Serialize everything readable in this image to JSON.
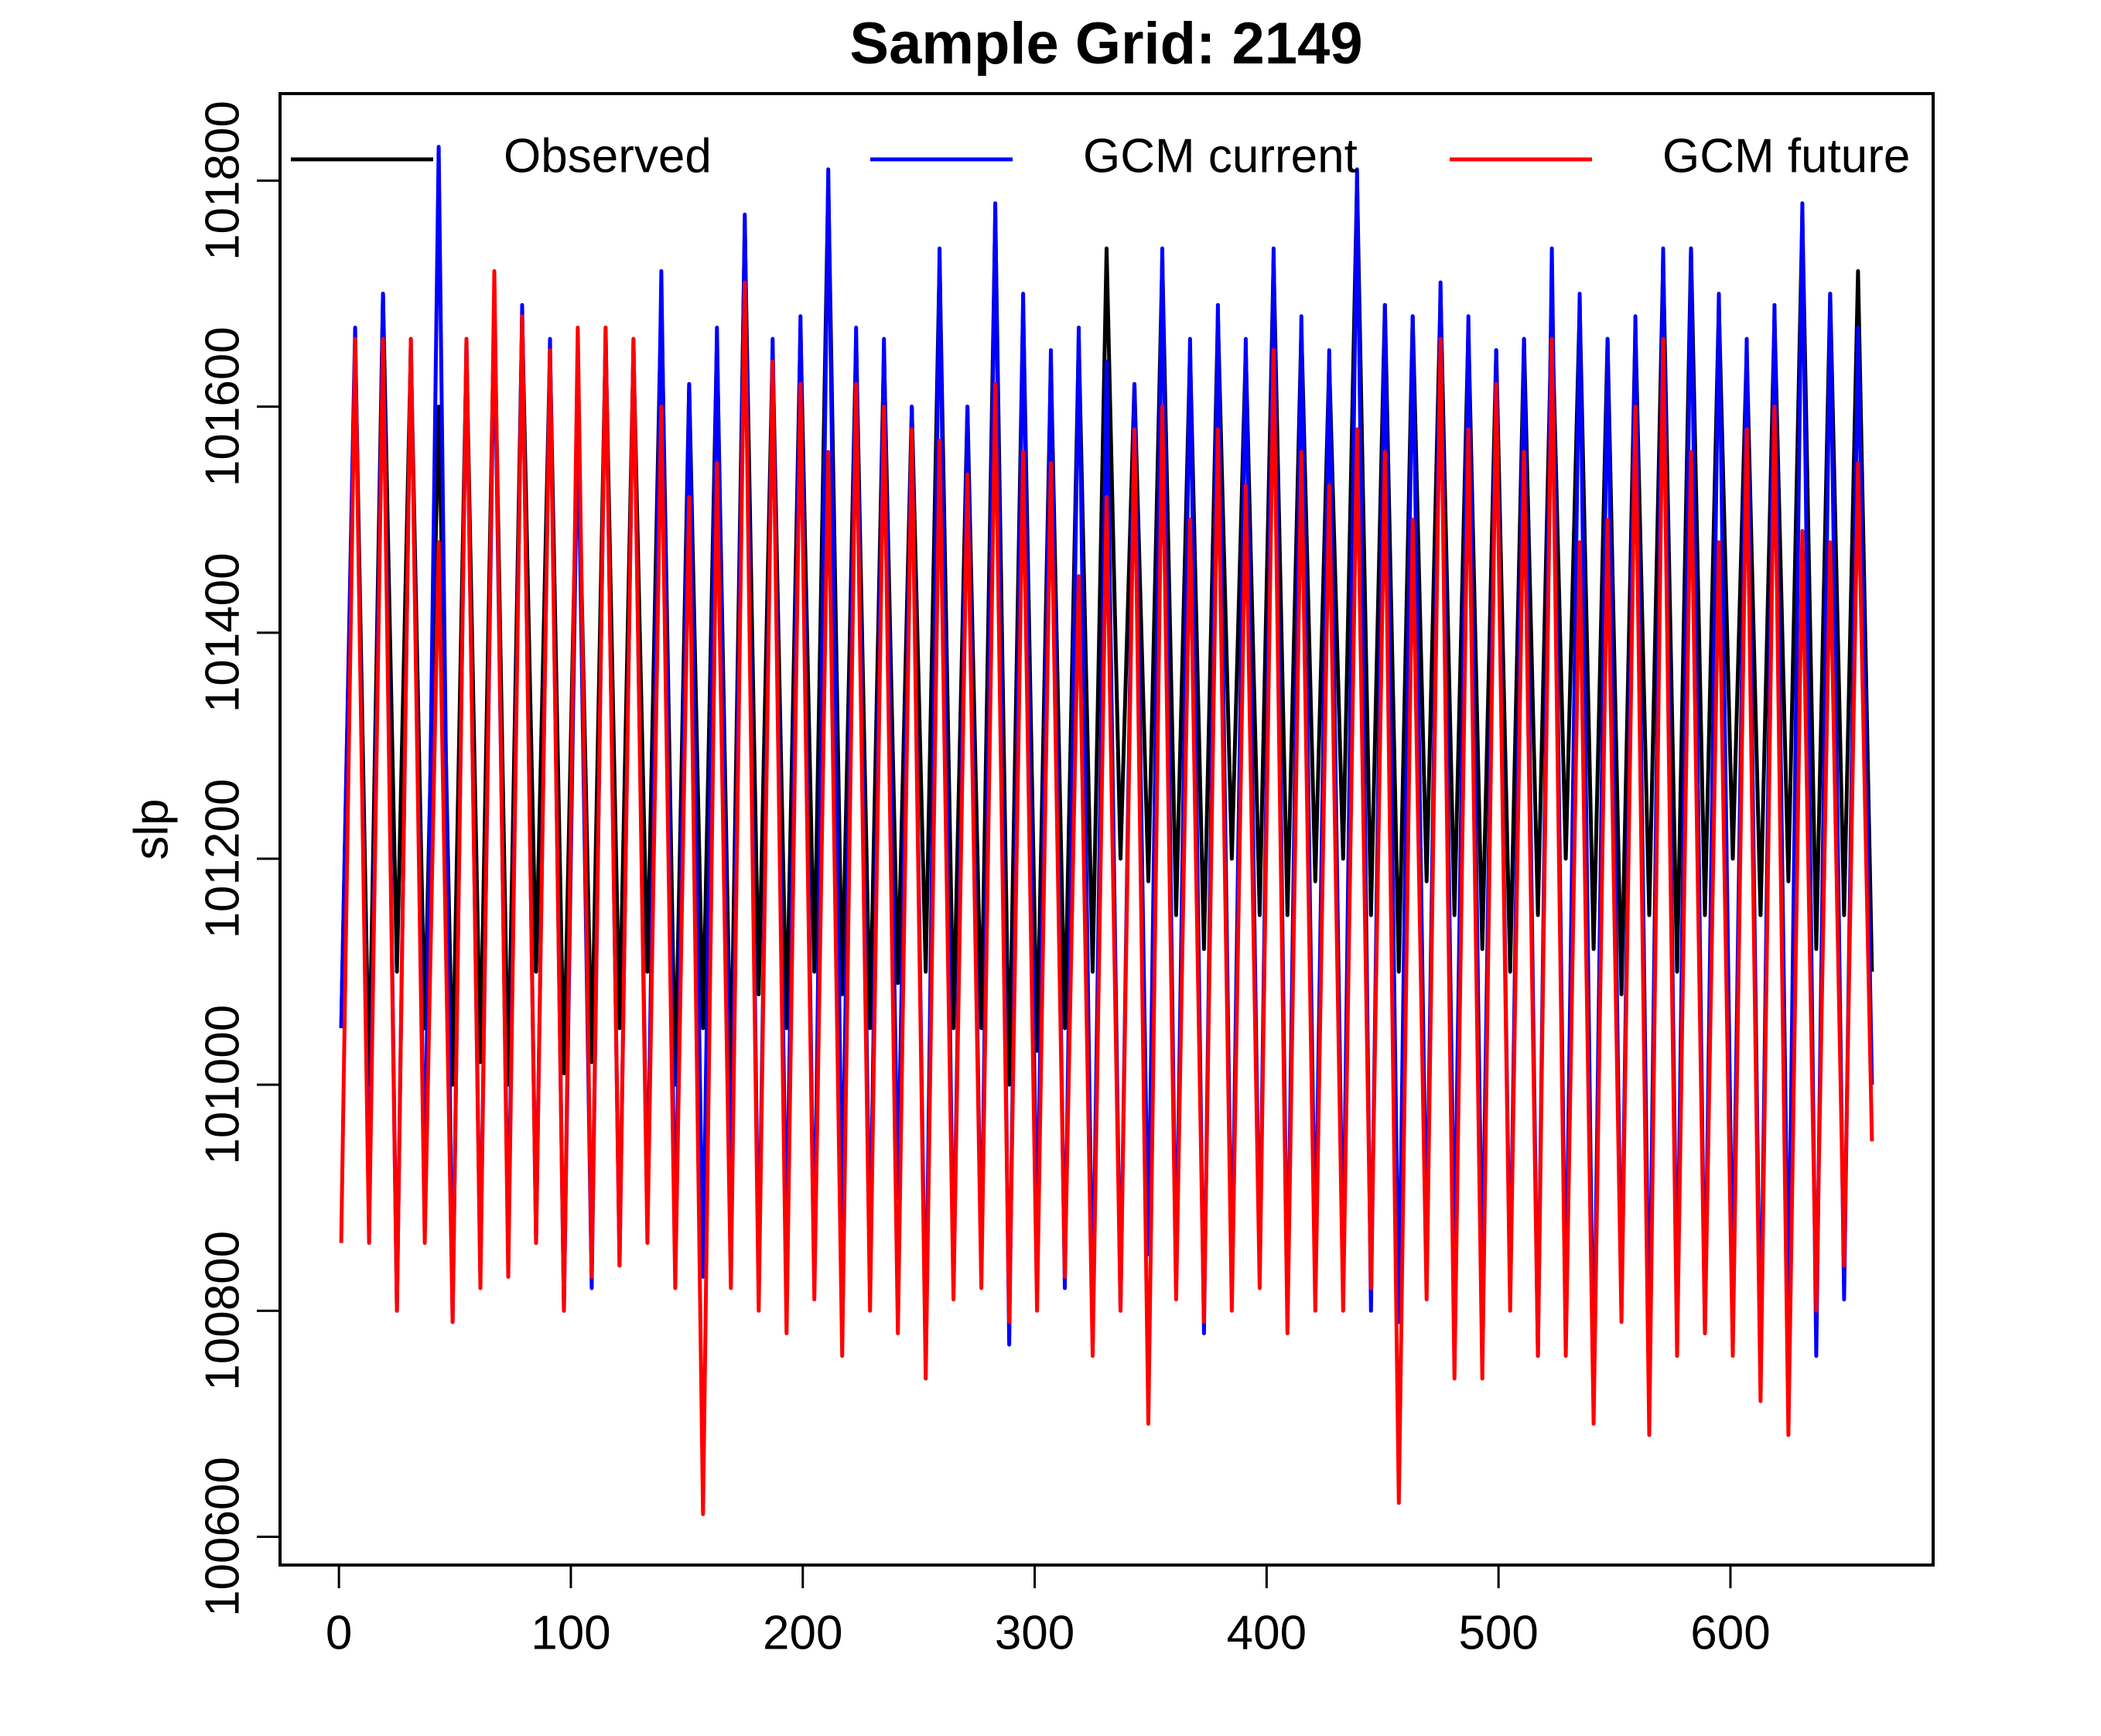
{
  "chart_data": {
    "type": "line",
    "title": "Sample Grid: 2149",
    "y_label": "slp",
    "x": [
      1,
      7,
      13,
      19,
      25,
      31,
      37,
      43,
      49,
      55,
      61,
      67,
      73,
      79,
      85,
      91,
      97,
      103,
      109,
      115,
      121,
      127,
      133,
      139,
      145,
      151,
      157,
      163,
      169,
      175,
      181,
      187,
      193,
      199,
      205,
      211,
      217,
      223,
      229,
      235,
      241,
      247,
      253,
      259,
      265,
      271,
      277,
      283,
      289,
      295,
      301,
      307,
      313,
      319,
      325,
      331,
      337,
      343,
      349,
      355,
      361,
      367,
      373,
      379,
      385,
      391,
      397,
      403,
      409,
      415,
      421,
      427,
      433,
      439,
      445,
      451,
      457,
      463,
      469,
      475,
      481,
      487,
      493,
      499,
      505,
      511,
      517,
      523,
      529,
      535,
      541,
      547,
      553,
      559,
      565,
      571,
      577,
      583,
      589,
      595,
      601,
      607,
      613,
      619,
      625,
      631,
      637,
      643,
      649,
      655,
      661
    ],
    "series": [
      {
        "name": "Observed",
        "color": "#000000",
        "values": [
          101050,
          101660,
          101000,
          101700,
          101100,
          101650,
          101050,
          101600,
          101000,
          101650,
          101020,
          101690,
          101000,
          101680,
          101100,
          101650,
          101010,
          101600,
          101020,
          101660,
          101050,
          101650,
          101100,
          101700,
          101000,
          101620,
          101050,
          101660,
          101000,
          101760,
          101080,
          101650,
          101050,
          101670,
          101100,
          101800,
          101080,
          101660,
          101050,
          101650,
          101090,
          101600,
          101100,
          101730,
          101050,
          101600,
          101050,
          101770,
          101000,
          101690,
          101030,
          101640,
          101050,
          101660,
          101100,
          101740,
          101200,
          101620,
          101180,
          101730,
          101150,
          101650,
          101120,
          101680,
          101200,
          101650,
          101150,
          101730,
          101150,
          101670,
          101180,
          101640,
          101200,
          101800,
          101150,
          101690,
          101100,
          101680,
          101180,
          101700,
          101150,
          101670,
          101120,
          101650,
          101100,
          101660,
          101150,
          101690,
          101200,
          101690,
          101120,
          101660,
          101080,
          101670,
          101150,
          101730,
          101100,
          101740,
          101150,
          101690,
          101200,
          101650,
          101150,
          101680,
          101180,
          101770,
          101120,
          101700,
          101150,
          101720,
          101100
        ]
      },
      {
        "name": "GCM current",
        "color": "#0000ff",
        "values": [
          101050,
          101670,
          100880,
          101700,
          100800,
          101660,
          100900,
          101830,
          100790,
          101660,
          100830,
          101690,
          100850,
          101690,
          100860,
          101660,
          100800,
          101600,
          100820,
          101670,
          100840,
          101660,
          100880,
          101720,
          100850,
          101620,
          100830,
          101670,
          100880,
          101770,
          100820,
          101660,
          100850,
          101680,
          100830,
          101810,
          100880,
          101670,
          100840,
          101660,
          100900,
          101600,
          100760,
          101740,
          100820,
          101600,
          100830,
          101780,
          100770,
          101700,
          100850,
          101650,
          100820,
          101670,
          100790,
          101640,
          100800,
          101620,
          100850,
          101740,
          100820,
          101660,
          100780,
          101690,
          100820,
          101660,
          100830,
          101740,
          100800,
          101680,
          100840,
          101650,
          100830,
          101810,
          100800,
          101690,
          100790,
          101680,
          100850,
          101710,
          100840,
          101680,
          100820,
          101650,
          100810,
          101660,
          100760,
          101740,
          100790,
          101700,
          100720,
          101660,
          100800,
          101680,
          100760,
          101740,
          100790,
          101740,
          100780,
          101700,
          100810,
          101660,
          100750,
          101690,
          100800,
          101780,
          100760,
          101700,
          100810,
          101670,
          101000
        ]
      },
      {
        "name": "GCM future",
        "color": "#ff0000",
        "values": [
          100860,
          101660,
          100860,
          101660,
          100800,
          101660,
          100860,
          101480,
          100790,
          101660,
          100820,
          101720,
          100830,
          101680,
          100860,
          101650,
          100800,
          101670,
          100830,
          101670,
          100840,
          101660,
          100860,
          101600,
          100820,
          101520,
          100620,
          101550,
          100820,
          101710,
          100800,
          101640,
          100780,
          101620,
          100810,
          101560,
          100760,
          101620,
          100800,
          101600,
          100780,
          101580,
          100740,
          101570,
          100810,
          101540,
          100820,
          101620,
          100790,
          101560,
          100800,
          101550,
          100830,
          101450,
          100760,
          101520,
          100800,
          101580,
          100700,
          101600,
          100810,
          101500,
          100790,
          101580,
          100800,
          101530,
          100820,
          101650,
          100780,
          101560,
          100800,
          101530,
          100800,
          101580,
          100820,
          101560,
          100630,
          101500,
          100810,
          101660,
          100740,
          101580,
          100740,
          101620,
          100800,
          101560,
          100760,
          101660,
          100760,
          101480,
          100700,
          101500,
          100790,
          101600,
          100690,
          101660,
          100760,
          101560,
          100780,
          101480,
          100760,
          101580,
          100720,
          101600,
          100690,
          101490,
          100800,
          101480,
          100840,
          101550,
          100950
        ]
      }
    ],
    "xlim": [
      -25.4,
      687.4
    ],
    "ylim": [
      100575,
      101877
    ],
    "xticks": [
      0,
      100,
      200,
      300,
      400,
      500,
      600
    ],
    "yticks": [
      100600,
      100800,
      101000,
      101200,
      101400,
      101600,
      101800
    ],
    "legend": "top"
  }
}
